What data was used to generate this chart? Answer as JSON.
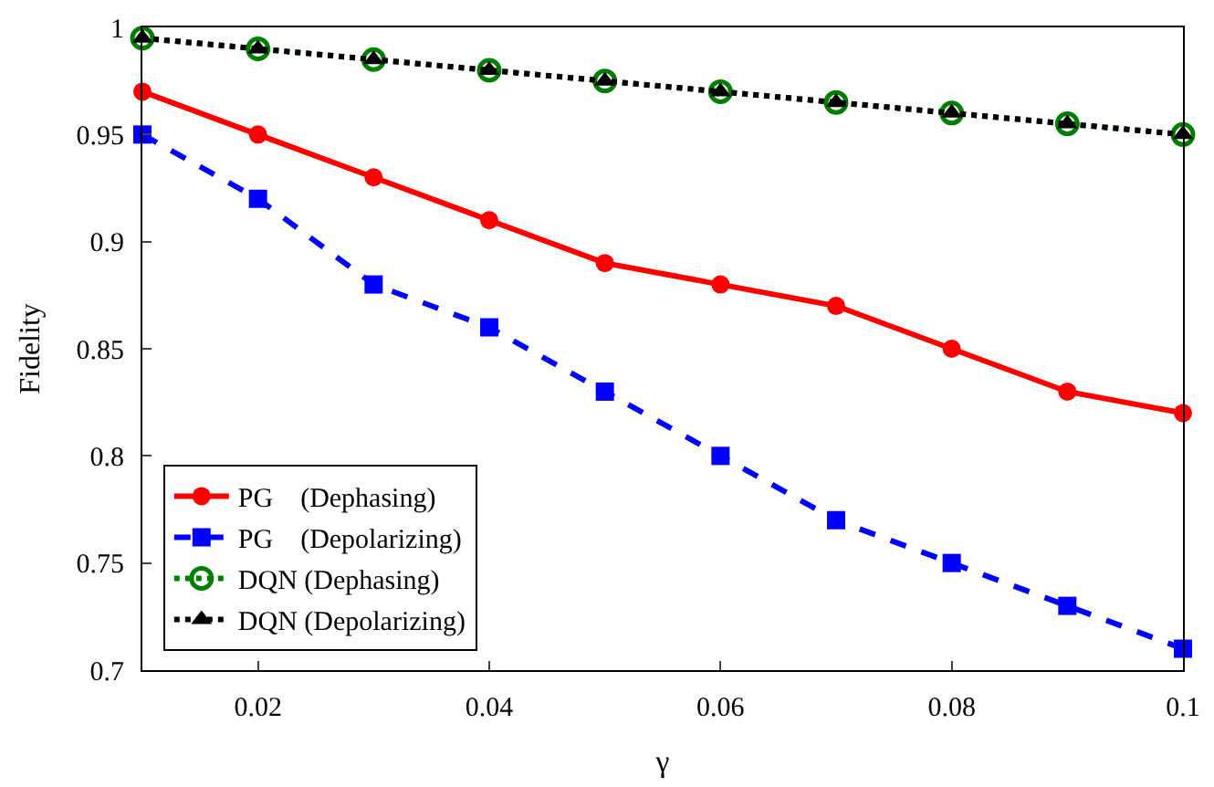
{
  "chart_data": {
    "type": "line",
    "xlabel": "γ",
    "ylabel": "Fidelity",
    "x": [
      0.01,
      0.02,
      0.03,
      0.04,
      0.05,
      0.06,
      0.07,
      0.08,
      0.09,
      0.1
    ],
    "series": [
      {
        "name": "PG    (Dephasing)",
        "color": "#ff0000",
        "marker": "circle",
        "line_style": "solid",
        "values": [
          0.97,
          0.95,
          0.93,
          0.91,
          0.89,
          0.88,
          0.87,
          0.85,
          0.83,
          0.82
        ]
      },
      {
        "name": "PG    (Depolarizing)",
        "color": "#0000ff",
        "marker": "square",
        "line_style": "dashed",
        "values": [
          0.95,
          0.92,
          0.88,
          0.86,
          0.83,
          0.8,
          0.77,
          0.75,
          0.73,
          0.71
        ]
      },
      {
        "name": "DQN (Dephasing)",
        "color": "#008000",
        "marker": "circle-open",
        "line_style": "dotted",
        "values": [
          0.995,
          0.99,
          0.985,
          0.98,
          0.975,
          0.97,
          0.965,
          0.96,
          0.955,
          0.95
        ]
      },
      {
        "name": "DQN (Depolarizing)",
        "color": "#000000",
        "marker": "triangle",
        "line_style": "dotted",
        "values": [
          0.995,
          0.99,
          0.985,
          0.98,
          0.975,
          0.97,
          0.965,
          0.96,
          0.955,
          0.95
        ]
      }
    ],
    "xlim": [
      0.01,
      0.1
    ],
    "ylim": [
      0.7,
      1
    ],
    "xticks": [
      0.02,
      0.04,
      0.06,
      0.08,
      0.1
    ],
    "yticks": [
      0.7,
      0.75,
      0.8,
      0.85,
      0.9,
      0.95,
      1
    ],
    "legend": "bottom left"
  }
}
